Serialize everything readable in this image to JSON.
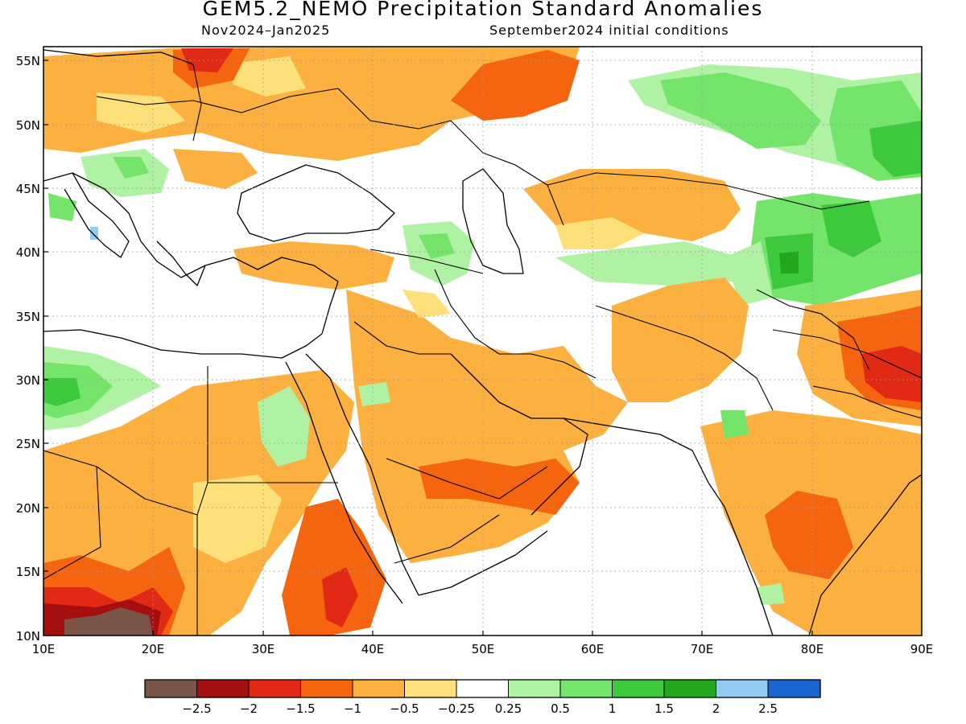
{
  "header": {
    "title": "GEM5.2_NEMO Precipitation Standard Anomalies",
    "period": "Nov2024–Jan2025",
    "conditions": "September2024 initial conditions"
  },
  "axes": {
    "lat_labels": [
      "55N",
      "50N",
      "45N",
      "40N",
      "35N",
      "30N",
      "25N",
      "20N",
      "15N",
      "10N"
    ],
    "lon_labels": [
      "10E",
      "20E",
      "30E",
      "40E",
      "50E",
      "60E",
      "70E",
      "80E",
      "90E"
    ]
  },
  "colorbar": {
    "colors": [
      "#7a5446",
      "#a50f0f",
      "#e02a15",
      "#f5650f",
      "#fbb040",
      "#fde079",
      "#ffffff",
      "#b0f2a3",
      "#74e56a",
      "#3cc93c",
      "#22a81f",
      "#92ccf2",
      "#1a64d0"
    ],
    "labels": [
      "−2.5",
      "−2",
      "−1.5",
      "−1",
      "−0.5",
      "−0.25",
      "0.25",
      "0.5",
      "1",
      "1.5",
      "2",
      "2.5"
    ]
  }
}
